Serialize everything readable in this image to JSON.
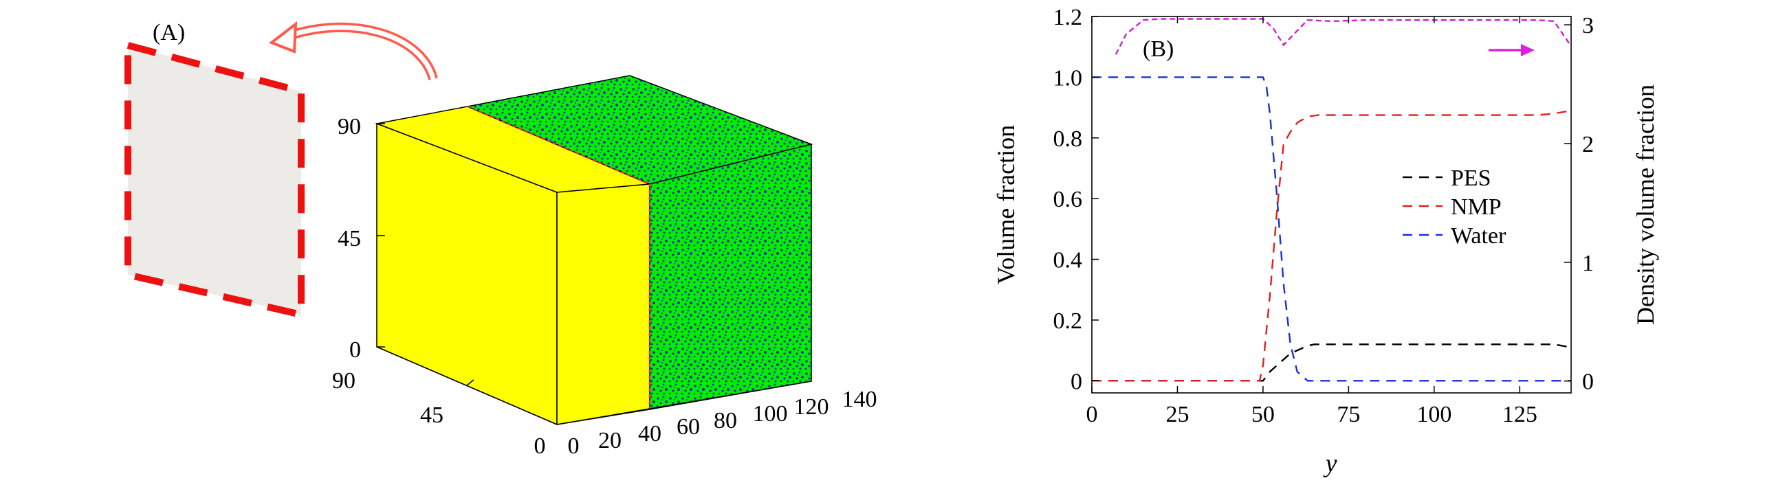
{
  "panel_a": {
    "label": "(A)",
    "vertical_ticks": [
      "0",
      "45",
      "90"
    ],
    "depth_ticks": [
      "0",
      "45",
      "90"
    ],
    "front_ticks": [
      "0",
      "20",
      "40",
      "60",
      "80",
      "100",
      "120",
      "140"
    ],
    "colors": {
      "yellow": "#ffff00",
      "green": "#00ee00",
      "blue": "#2a2aa8",
      "interface": "#ff2a2a",
      "slab": "#ecebe7",
      "slab_border": "#ee1111",
      "arrow": "#ff5a4a"
    }
  },
  "panel_b": {
    "label": "(B)",
    "chart_data": {
      "type": "line",
      "xlabel": "y",
      "ylabel": "Volume fraction",
      "ylabel_right": "Density volume fraction",
      "xlim": [
        0,
        140
      ],
      "ylim": [
        -0.04,
        1.2
      ],
      "ylim_right": [
        -0.1,
        3.07
      ],
      "xticks": [
        "0",
        "25",
        "50",
        "75",
        "100",
        "125"
      ],
      "yticks": [
        "0",
        "0.2",
        "0.4",
        "0.6",
        "0.8",
        "1.0",
        "1.2"
      ],
      "yticks_right": [
        "0",
        "1",
        "2",
        "3"
      ],
      "legend_position": "center-right",
      "series": [
        {
          "name": "PES",
          "color": "#000000",
          "x": [
            0,
            25,
            50,
            52,
            55,
            58,
            60,
            63,
            65,
            70,
            80,
            90,
            100,
            110,
            120,
            130,
            135,
            140
          ],
          "y": [
            0,
            0,
            0,
            0.03,
            0.06,
            0.09,
            0.1,
            0.115,
            0.12,
            0.12,
            0.12,
            0.12,
            0.12,
            0.12,
            0.12,
            0.12,
            0.12,
            0.11
          ]
        },
        {
          "name": "NMP",
          "color": "#e0201a",
          "x": [
            0,
            25,
            49,
            50,
            52,
            54,
            56,
            58,
            60,
            63,
            66,
            70,
            80,
            90,
            100,
            110,
            120,
            130,
            135,
            140
          ],
          "y": [
            0,
            0,
            0,
            0.05,
            0.28,
            0.55,
            0.78,
            0.82,
            0.85,
            0.87,
            0.875,
            0.875,
            0.875,
            0.875,
            0.875,
            0.875,
            0.875,
            0.875,
            0.88,
            0.89
          ]
        },
        {
          "name": "Water",
          "color": "#1a2fd6",
          "x": [
            0,
            25,
            50,
            51,
            52,
            54,
            56,
            58,
            60,
            63,
            65,
            75,
            100,
            125,
            140
          ],
          "y": [
            1.0,
            1.0,
            1.0,
            0.97,
            0.88,
            0.62,
            0.32,
            0.12,
            0.03,
            0.0,
            0.0,
            0.0,
            0.0,
            0.0,
            0.0
          ]
        },
        {
          "name": "",
          "axis": "right",
          "color": "#d01ed8",
          "x": [
            7,
            10,
            15,
            20,
            30,
            40,
            45,
            50,
            53,
            56,
            60,
            63,
            70,
            80,
            100,
            120,
            130,
            135,
            140
          ],
          "y": [
            2.75,
            2.92,
            3.04,
            3.05,
            3.05,
            3.05,
            3.05,
            3.05,
            2.97,
            2.83,
            2.95,
            3.04,
            3.03,
            3.04,
            3.04,
            3.04,
            3.04,
            3.03,
            2.82
          ]
        }
      ]
    }
  }
}
